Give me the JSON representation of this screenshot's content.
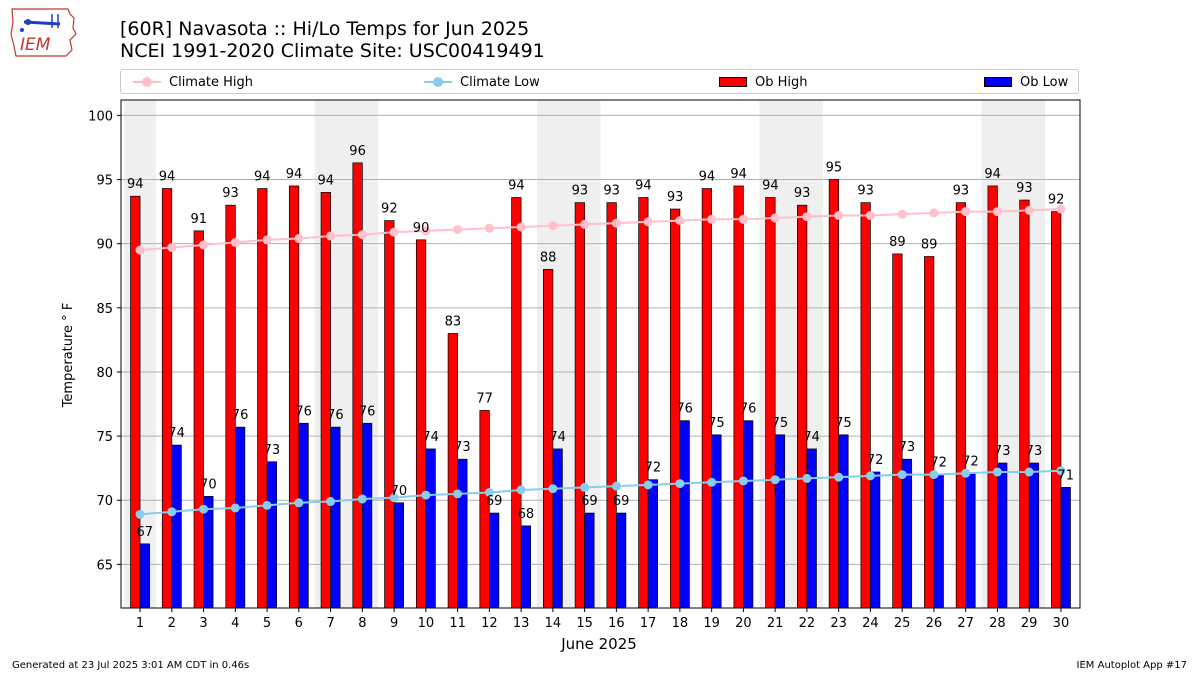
{
  "logo_text": "IEM",
  "title_line1": "[60R] Navasota :: Hi/Lo Temps for Jun 2025",
  "title_line2": "NCEI 1991-2020 Climate Site: USC00419491",
  "legend": [
    {
      "label": "Climate High",
      "kind": "line",
      "color": "#ffc0cb"
    },
    {
      "label": "Climate Low",
      "kind": "line",
      "color": "#87ceeb"
    },
    {
      "label": "Ob High",
      "kind": "bar",
      "color": "#ff0000"
    },
    {
      "label": "Ob Low",
      "kind": "bar",
      "color": "#0000ff"
    }
  ],
  "footer_left": "Generated at 23 Jul 2025 3:01 AM CDT in 0.46s",
  "footer_right": "IEM Autoplot App #17",
  "chart_data": {
    "type": "bar",
    "xlabel": "June 2025",
    "ylabel": "Temperature ° F",
    "ylim": [
      61.6,
      101.2
    ],
    "yticks": [
      65,
      70,
      75,
      80,
      85,
      90,
      95,
      100
    ],
    "grid": "horizontal",
    "weekend_shading": [
      1,
      7,
      8,
      14,
      15,
      21,
      22,
      28,
      29
    ],
    "shade_color": "#efefef",
    "categories": [
      "1",
      "2",
      "3",
      "4",
      "5",
      "6",
      "7",
      "8",
      "9",
      "10",
      "11",
      "12",
      "13",
      "14",
      "15",
      "16",
      "17",
      "18",
      "19",
      "20",
      "21",
      "22",
      "23",
      "24",
      "25",
      "26",
      "27",
      "28",
      "29",
      "30"
    ],
    "series": [
      {
        "name": "Ob High",
        "kind": "bar",
        "color": "#ff0000",
        "values": [
          93.7,
          94.3,
          91.0,
          93.0,
          94.3,
          94.5,
          94.0,
          96.3,
          91.8,
          90.3,
          83.0,
          77.0,
          93.6,
          88.0,
          93.2,
          93.2,
          93.6,
          92.7,
          94.3,
          94.5,
          93.6,
          93.0,
          95.0,
          93.2,
          89.2,
          89.0,
          93.2,
          94.5,
          93.4,
          92.5
        ],
        "labels": [
          94,
          94,
          91,
          93,
          94,
          94,
          94,
          96,
          92,
          90,
          83,
          77,
          94,
          88,
          93,
          93,
          94,
          93,
          94,
          94,
          94,
          93,
          95,
          93,
          89,
          89,
          93,
          94,
          93,
          92
        ]
      },
      {
        "name": "Ob Low",
        "kind": "bar",
        "color": "#0000ff",
        "values": [
          66.6,
          74.3,
          70.3,
          75.7,
          73.0,
          76.0,
          75.7,
          76.0,
          69.8,
          74.0,
          73.2,
          69.0,
          68.0,
          74.0,
          69.0,
          69.0,
          71.6,
          76.2,
          75.1,
          76.2,
          75.1,
          74.0,
          75.1,
          72.2,
          73.2,
          72.0,
          72.1,
          72.9,
          72.9,
          71.0
        ],
        "labels": [
          67,
          74,
          70,
          76,
          73,
          76,
          76,
          76,
          70,
          74,
          73,
          69,
          68,
          74,
          69,
          69,
          72,
          76,
          75,
          76,
          75,
          74,
          75,
          72,
          73,
          72,
          72,
          73,
          73,
          71
        ]
      },
      {
        "name": "Climate High",
        "kind": "line",
        "color": "#ffc0cb",
        "values": [
          89.5,
          89.7,
          89.9,
          90.1,
          90.3,
          90.4,
          90.6,
          90.7,
          90.9,
          91.0,
          91.1,
          91.2,
          91.3,
          91.4,
          91.5,
          91.6,
          91.7,
          91.8,
          91.9,
          91.9,
          92.0,
          92.1,
          92.2,
          92.2,
          92.3,
          92.4,
          92.5,
          92.5,
          92.6,
          92.7
        ]
      },
      {
        "name": "Climate Low",
        "kind": "line",
        "color": "#87ceeb",
        "values": [
          68.9,
          69.1,
          69.3,
          69.4,
          69.6,
          69.8,
          69.9,
          70.1,
          70.2,
          70.4,
          70.5,
          70.6,
          70.8,
          70.9,
          71.0,
          71.1,
          71.2,
          71.3,
          71.4,
          71.5,
          71.6,
          71.7,
          71.8,
          71.9,
          72.0,
          72.0,
          72.1,
          72.2,
          72.2,
          72.3
        ]
      }
    ]
  }
}
